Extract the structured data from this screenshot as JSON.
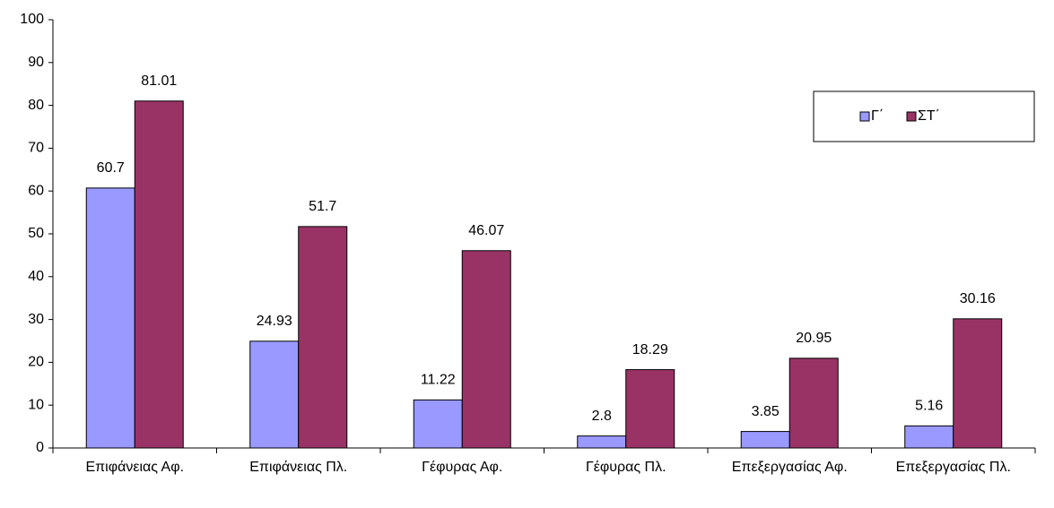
{
  "chart_data": {
    "type": "bar",
    "categories": [
      "Επιφάνειας Αφ.",
      "Επιφάνειας Πλ.",
      "Γέφυρας Αφ.",
      "Γέφυρας Πλ.",
      "Επεξεργασίας Αφ.",
      "Επεξεργασίας Πλ."
    ],
    "series": [
      {
        "name": "Γ΄",
        "color": "#9999ff",
        "values": [
          60.7,
          24.93,
          11.22,
          2.8,
          3.85,
          5.16
        ]
      },
      {
        "name": "ΣΤ΄",
        "color": "#993366",
        "values": [
          81.01,
          51.7,
          46.07,
          18.29,
          20.95,
          30.16
        ]
      }
    ],
    "ylim": [
      0,
      100
    ],
    "yticks": [
      0,
      10,
      20,
      30,
      40,
      50,
      60,
      70,
      80,
      90,
      100
    ],
    "grid": false,
    "legend": "upper right"
  }
}
